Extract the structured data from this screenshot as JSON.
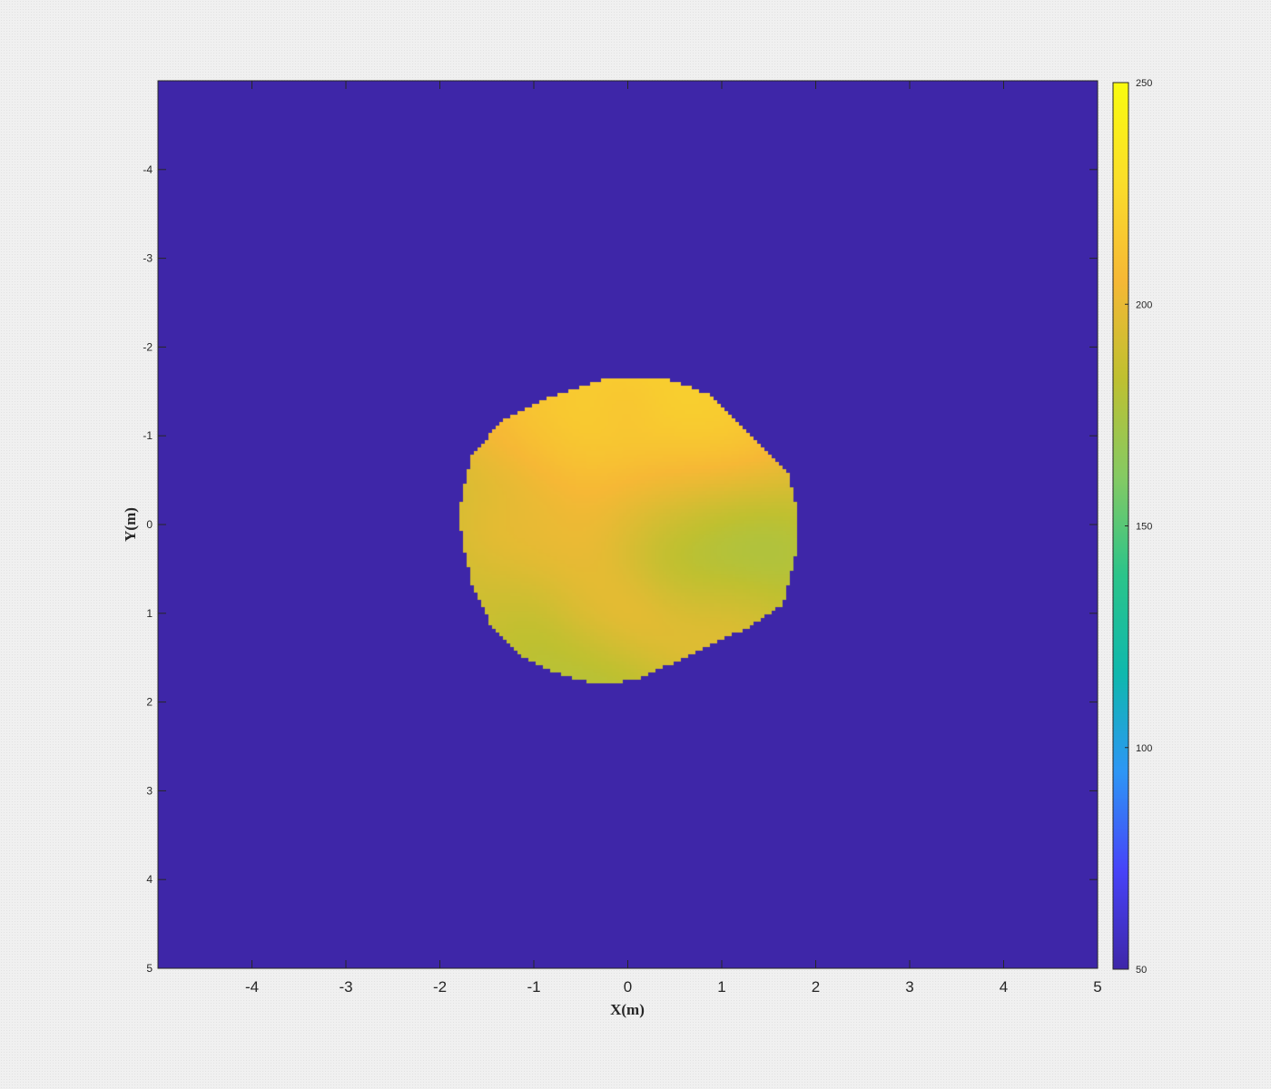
{
  "chart_data": {
    "type": "heatmap",
    "title": "",
    "xlabel": "X(m)",
    "ylabel": "Y(m)",
    "xlim": [
      -5,
      5
    ],
    "ylim": [
      -5,
      5
    ],
    "y_axis_direction": "reversed",
    "x_ticks": [
      "-4",
      "-3",
      "-2",
      "-1",
      "0",
      "1",
      "2",
      "3",
      "4",
      "5"
    ],
    "x_tick_values": [
      -4,
      -3,
      -2,
      -1,
      0,
      1,
      2,
      3,
      4,
      5
    ],
    "y_ticks": [
      "-4",
      "-3",
      "-2",
      "-1",
      "0",
      "1",
      "2",
      "3",
      "4",
      "5"
    ],
    "y_tick_values": [
      -4,
      -3,
      -2,
      -1,
      0,
      1,
      2,
      3,
      4,
      5
    ],
    "colorbar": {
      "clim": [
        50,
        250
      ],
      "ticks": [
        "50",
        "100",
        "150",
        "200",
        "250"
      ],
      "tick_values": [
        50,
        100,
        150,
        200,
        250
      ],
      "colormap": "parula",
      "colormap_stops": [
        "#3e26a8",
        "#4743f8",
        "#2d96f5",
        "#0fb8ad",
        "#2bc48a",
        "#85ca63",
        "#bfc030",
        "#f6b835",
        "#fade2a",
        "#f9fb0e"
      ]
    },
    "background_value": 50,
    "region": {
      "shape": "irregular disc",
      "boundary": [
        [
          -0.2,
          -1.65
        ],
        [
          0.4,
          -1.65
        ],
        [
          0.9,
          -1.45
        ],
        [
          1.3,
          -1.0
        ],
        [
          1.7,
          -0.6
        ],
        [
          1.8,
          -0.2
        ],
        [
          1.8,
          0.3
        ],
        [
          1.65,
          0.9
        ],
        [
          1.3,
          1.15
        ],
        [
          0.9,
          1.35
        ],
        [
          0.5,
          1.55
        ],
        [
          0.1,
          1.75
        ],
        [
          -0.3,
          1.8
        ],
        [
          -0.7,
          1.7
        ],
        [
          -1.1,
          1.5
        ],
        [
          -1.45,
          1.15
        ],
        [
          -1.65,
          0.7
        ],
        [
          -1.75,
          0.25
        ],
        [
          -1.8,
          -0.1
        ],
        [
          -1.75,
          -0.4
        ],
        [
          -1.65,
          -0.8
        ],
        [
          -1.3,
          -1.2
        ],
        [
          -0.8,
          -1.45
        ]
      ],
      "value_field": [
        {
          "x": 0.0,
          "y": 0.0,
          "value": 188,
          "sigma": 3.0
        },
        {
          "x": -0.3,
          "y": -1.15,
          "value": 232,
          "sigma": 0.9
        },
        {
          "x": 0.7,
          "y": -1.0,
          "value": 244,
          "sigma": 0.75
        },
        {
          "x": 0.0,
          "y": -1.2,
          "value": 222,
          "sigma": 0.6
        },
        {
          "x": -1.0,
          "y": -0.8,
          "value": 230,
          "sigma": 0.5
        },
        {
          "x": 0.0,
          "y": -1.3,
          "value": 202,
          "sigma": 0.22
        },
        {
          "x": 0.25,
          "y": -0.45,
          "value": 182,
          "sigma": 0.5
        },
        {
          "x": -1.2,
          "y": -0.4,
          "value": 168,
          "sigma": 0.5
        },
        {
          "x": 1.15,
          "y": 0.2,
          "value": 150,
          "sigma": 0.55
        },
        {
          "x": 0.5,
          "y": 0.3,
          "value": 165,
          "sigma": 0.5
        },
        {
          "x": -1.3,
          "y": 0.05,
          "value": 215,
          "sigma": 0.35
        },
        {
          "x": -0.5,
          "y": 0.3,
          "value": 210,
          "sigma": 0.45
        },
        {
          "x": 0.0,
          "y": 1.05,
          "value": 220,
          "sigma": 0.4
        },
        {
          "x": 0.95,
          "y": 1.0,
          "value": 212,
          "sigma": 0.45
        },
        {
          "x": -0.8,
          "y": 1.25,
          "value": 175,
          "sigma": 0.45
        },
        {
          "x": -0.2,
          "y": 1.65,
          "value": 170,
          "sigma": 0.4
        },
        {
          "x": -1.5,
          "y": 0.6,
          "value": 190,
          "sigma": 0.4
        },
        {
          "x": -0.4,
          "y": 0.85,
          "value": 200,
          "sigma": 0.3
        }
      ]
    }
  }
}
